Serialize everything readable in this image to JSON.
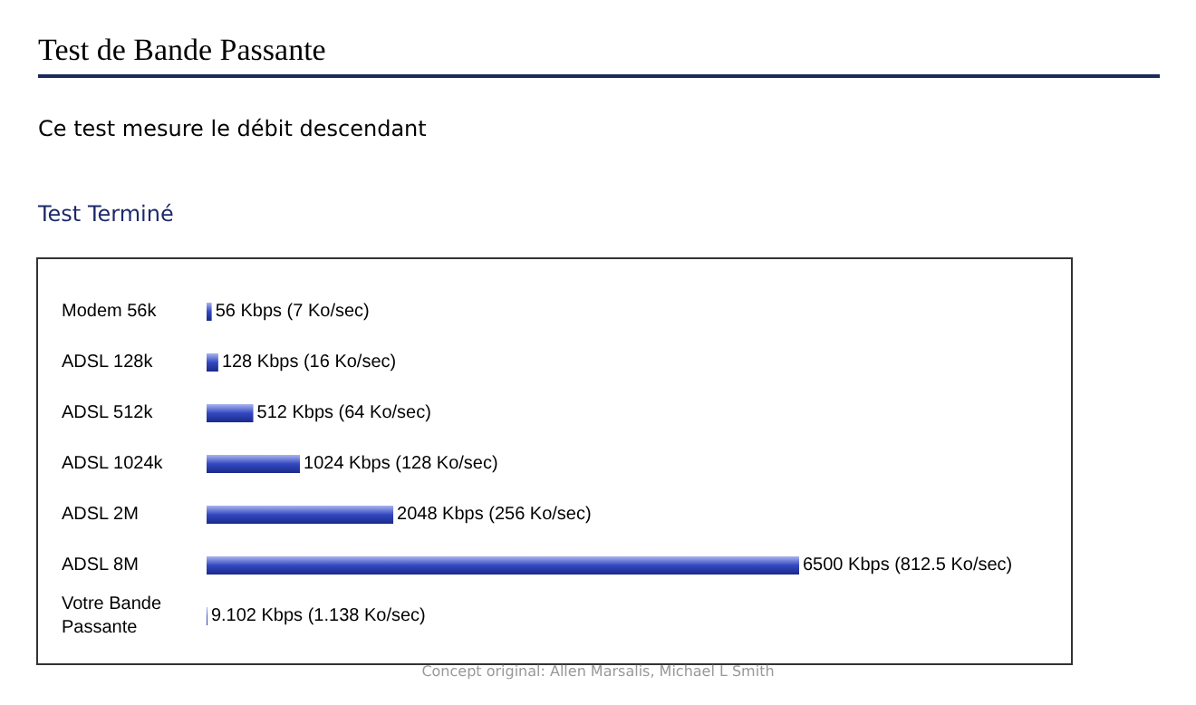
{
  "chart_data": {
    "type": "bar",
    "orientation": "horizontal",
    "title": "Test de Bande Passante",
    "subtitle": "Ce test mesure le débit descendant",
    "annotations": [
      "Test Terminé",
      "Concept original: Allen Marsalis, Michael L Smith"
    ],
    "categories": [
      "Modem 56k",
      "ADSL 128k",
      "ADSL 512k",
      "ADSL 1024k",
      "ADSL 2M",
      "ADSL 8M",
      "Votre Bande Passante"
    ],
    "values": [
      56,
      128,
      512,
      1024,
      2048,
      6500,
      9.102
    ],
    "value_labels": [
      "56 Kbps (7 Ko/sec)",
      "128 Kbps (16 Ko/sec)",
      "512 Kbps (64 Ko/sec)",
      "1024 Kbps (128 Ko/sec)",
      "2048 Kbps (256 Ko/sec)",
      "6500 Kbps (812.5 Ko/sec)",
      "9.102 Kbps (1.138 Ko/sec)"
    ],
    "color": "#3348c0"
  }
}
